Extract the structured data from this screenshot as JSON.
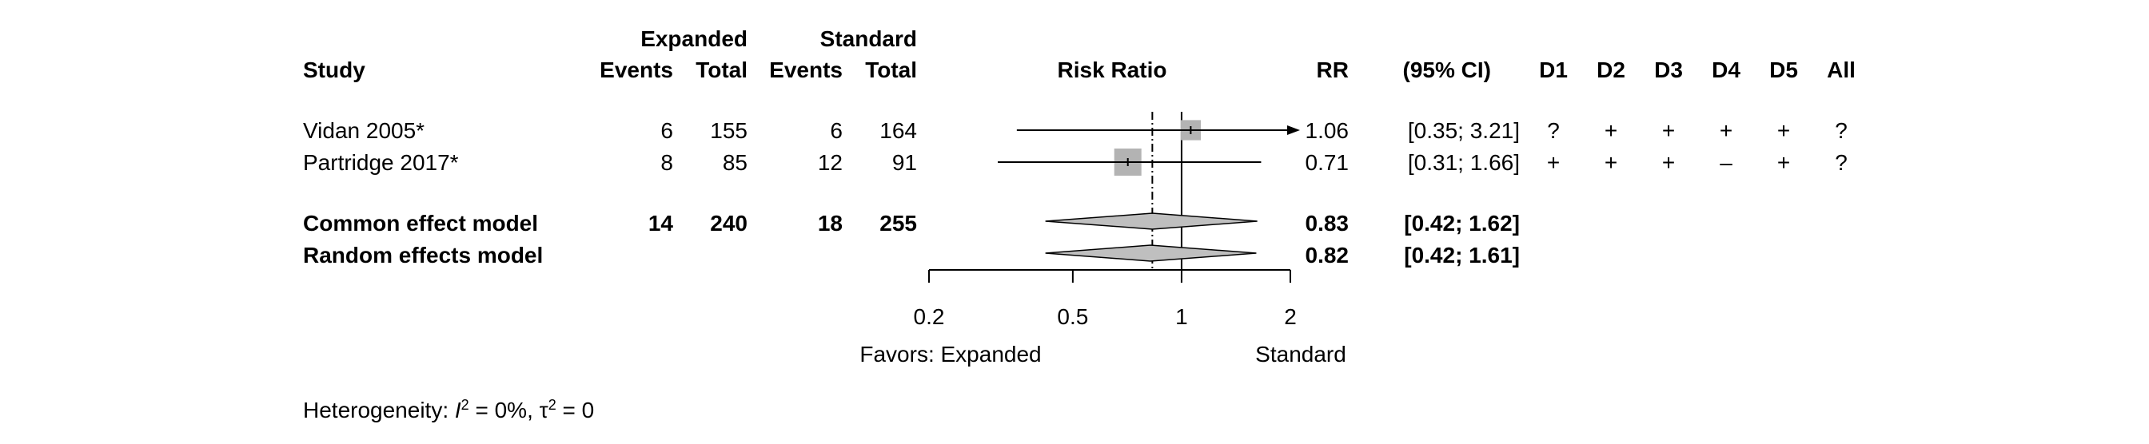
{
  "chart_data": {
    "type": "forest",
    "header": {
      "group1": "Expanded",
      "group2": "Standard",
      "study": "Study",
      "events": "Events",
      "total": "Total",
      "risk_ratio": "Risk Ratio",
      "rr": "RR",
      "ci": "(95% CI)",
      "domains": [
        "D1",
        "D2",
        "D3",
        "D4",
        "D5",
        "All"
      ]
    },
    "studies": [
      {
        "name": "Vidan 2005*",
        "e1": "6",
        "n1": "155",
        "e2": "6",
        "n2": "164",
        "rr": 1.06,
        "lower": 0.35,
        "upper": 3.21,
        "rr_text": "1.06",
        "ci_text": "[0.35; 3.21]",
        "arrow_right": true,
        "weight_box": 0.55,
        "rob": [
          "?",
          "+",
          "+",
          "+",
          "+",
          "?"
        ]
      },
      {
        "name": "Partridge 2017*",
        "e1": "8",
        "n1": "85",
        "e2": "12",
        "n2": "91",
        "rr": 0.71,
        "lower": 0.31,
        "upper": 1.66,
        "rr_text": "0.71",
        "ci_text": "[0.31; 1.66]",
        "arrow_right": false,
        "weight_box": 1.0,
        "rob": [
          "+",
          "+",
          "+",
          "–",
          "+",
          "?"
        ]
      }
    ],
    "pooled": [
      {
        "name": "Common effect model",
        "e1": "14",
        "n1": "240",
        "e2": "18",
        "n2": "255",
        "rr": 0.83,
        "lower": 0.42,
        "upper": 1.62,
        "rr_text": "0.83",
        "ci_text": "[0.42; 1.62]",
        "bold": true
      },
      {
        "name": "Random effects model",
        "e1": "",
        "n1": "",
        "e2": "",
        "n2": "",
        "rr": 0.82,
        "lower": 0.42,
        "upper": 1.61,
        "rr_text": "0.82",
        "ci_text": "[0.42; 1.61]",
        "bold": true
      }
    ],
    "x_axis": {
      "scale": "log",
      "ticks": [
        0.2,
        0.5,
        1,
        2
      ],
      "tick_labels": [
        "0.2",
        "0.5",
        "1",
        "2"
      ],
      "range": [
        0.2,
        2
      ]
    },
    "favors_left": "Favors: Expanded",
    "favors_right": "Standard",
    "heterogeneity": {
      "prefix": "Heterogeneity: ",
      "i2_symbol": "I",
      "i2_value": " = 0%, ",
      "tau_symbol": "τ",
      "tau_value": " = 0"
    },
    "colors": {
      "box": "#b3b3b3",
      "diamond": "#bfbfbf",
      "line": "#000000"
    }
  }
}
